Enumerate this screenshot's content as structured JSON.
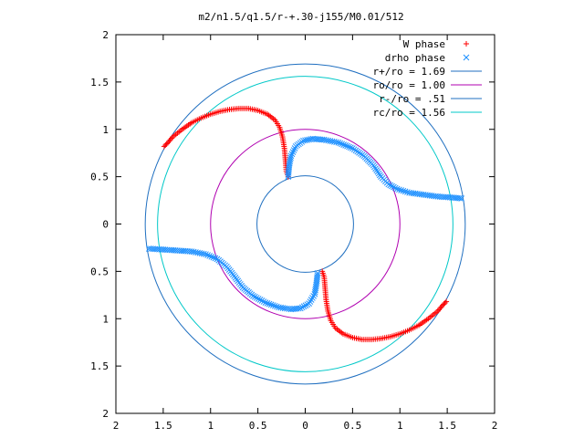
{
  "chart_data": {
    "type": "scatter",
    "title": "m2/n1.5/q1.5/r-+.30-j155/M0.01/512",
    "xlabel": "",
    "ylabel": "",
    "xlim": [
      -2,
      2
    ],
    "ylim": [
      -2,
      2
    ],
    "x_tick_values": [
      -2,
      -1.5,
      -1,
      -0.5,
      0,
      0.5,
      1,
      1.5,
      2
    ],
    "x_tick_labels": [
      "2",
      "1.5",
      "1",
      "0.5",
      "0",
      "0.5",
      "1",
      "1.5",
      "2"
    ],
    "y_tick_values": [
      2,
      1.5,
      1,
      0.5,
      0,
      -0.5,
      -1,
      -1.5,
      -2
    ],
    "y_tick_labels": [
      "2",
      "1.5",
      "1",
      "0.5",
      "0",
      "0.5",
      "1",
      "1.5",
      "2"
    ],
    "grid": false,
    "legend_position": "top-right",
    "series": [
      {
        "name": "W phase",
        "marker": "plus",
        "color": "#ff0000",
        "points": [
          [
            -1.49,
            0.82
          ],
          [
            -1.45,
            0.86
          ],
          [
            -1.4,
            0.92
          ],
          [
            -1.3,
            1.0
          ],
          [
            -1.2,
            1.07
          ],
          [
            -1.1,
            1.12
          ],
          [
            -1.0,
            1.16
          ],
          [
            -0.9,
            1.19
          ],
          [
            -0.8,
            1.21
          ],
          [
            -0.7,
            1.22
          ],
          [
            -0.6,
            1.22
          ],
          [
            -0.5,
            1.2
          ],
          [
            -0.4,
            1.16
          ],
          [
            -0.32,
            1.1
          ],
          [
            -0.27,
            1.02
          ],
          [
            -0.24,
            0.92
          ],
          [
            -0.22,
            0.8
          ],
          [
            -0.21,
            0.68
          ],
          [
            -0.2,
            0.56
          ],
          [
            -0.18,
            0.5
          ],
          [
            0.18,
            -0.5
          ],
          [
            0.2,
            -0.56
          ],
          [
            0.21,
            -0.68
          ],
          [
            0.22,
            -0.8
          ],
          [
            0.24,
            -0.92
          ],
          [
            0.27,
            -1.02
          ],
          [
            0.32,
            -1.1
          ],
          [
            0.4,
            -1.16
          ],
          [
            0.5,
            -1.2
          ],
          [
            0.6,
            -1.22
          ],
          [
            0.7,
            -1.22
          ],
          [
            0.8,
            -1.21
          ],
          [
            0.9,
            -1.19
          ],
          [
            1.0,
            -1.16
          ],
          [
            1.1,
            -1.12
          ],
          [
            1.2,
            -1.07
          ],
          [
            1.3,
            -1.0
          ],
          [
            1.4,
            -0.92
          ],
          [
            1.45,
            -0.86
          ],
          [
            1.49,
            -0.82
          ]
        ]
      },
      {
        "name": "drho phase",
        "marker": "x",
        "color": "#1e90ff",
        "points": [
          [
            -0.18,
            0.5
          ],
          [
            -0.17,
            0.62
          ],
          [
            -0.15,
            0.72
          ],
          [
            -0.1,
            0.82
          ],
          [
            -0.02,
            0.88
          ],
          [
            0.08,
            0.9
          ],
          [
            0.2,
            0.89
          ],
          [
            0.35,
            0.86
          ],
          [
            0.5,
            0.8
          ],
          [
            0.62,
            0.72
          ],
          [
            0.72,
            0.62
          ],
          [
            0.8,
            0.5
          ],
          [
            0.88,
            0.42
          ],
          [
            0.97,
            0.37
          ],
          [
            1.1,
            0.33
          ],
          [
            1.25,
            0.31
          ],
          [
            1.4,
            0.29
          ],
          [
            1.55,
            0.28
          ],
          [
            1.65,
            0.27
          ],
          [
            0.13,
            -0.52
          ],
          [
            0.12,
            -0.62
          ],
          [
            0.1,
            -0.74
          ],
          [
            0.04,
            -0.84
          ],
          [
            -0.05,
            -0.89
          ],
          [
            -0.15,
            -0.9
          ],
          [
            -0.28,
            -0.88
          ],
          [
            -0.42,
            -0.83
          ],
          [
            -0.55,
            -0.76
          ],
          [
            -0.66,
            -0.67
          ],
          [
            -0.75,
            -0.55
          ],
          [
            -0.83,
            -0.45
          ],
          [
            -0.93,
            -0.37
          ],
          [
            -1.05,
            -0.32
          ],
          [
            -1.2,
            -0.29
          ],
          [
            -1.35,
            -0.28
          ],
          [
            -1.5,
            -0.27
          ],
          [
            -1.65,
            -0.26
          ]
        ]
      },
      {
        "name": "r+/ro = 1.69",
        "type": "circle",
        "radius": 1.69,
        "color": "#1f6fc0"
      },
      {
        "name": "ro/ro = 1.00",
        "type": "circle",
        "radius": 1.0,
        "color": "#b000b0"
      },
      {
        "name": "r-/ro = .51",
        "type": "circle",
        "radius": 0.51,
        "color": "#1f6fc0"
      },
      {
        "name": "rc/ro = 1.56",
        "type": "circle",
        "radius": 1.56,
        "color": "#00c8c8"
      }
    ]
  }
}
